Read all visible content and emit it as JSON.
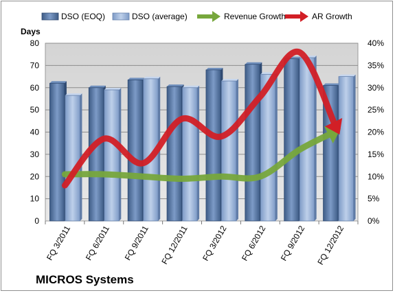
{
  "chart_data": {
    "type": "bar",
    "title": "MICROS Systems",
    "ylabel": "Days",
    "categories": [
      "FQ 3/2011",
      "FQ 6/2011",
      "FQ 9/2011",
      "FQ 12/2011",
      "FQ 3/2012",
      "FQ 6/2012",
      "FQ 9/2012",
      "FQ 12/2012"
    ],
    "ylim": [
      0,
      80
    ],
    "y_ticks": [
      "0",
      "10",
      "20",
      "30",
      "40",
      "50",
      "60",
      "70",
      "80"
    ],
    "y2lim": [
      0,
      40
    ],
    "y2_ticks": [
      "0%",
      "5%",
      "10%",
      "15%",
      "20%",
      "25%",
      "30%",
      "35%",
      "40%"
    ],
    "series": [
      {
        "name": "DSO (EOQ)",
        "axis": "left",
        "kind": "bar",
        "color": "#4f6f9c",
        "values": [
          62,
          60,
          63.5,
          60.5,
          68,
          70.5,
          73,
          61
        ]
      },
      {
        "name": "DSO (average)",
        "axis": "left",
        "kind": "bar",
        "color": "#92acd2",
        "values": [
          56.5,
          59,
          64,
          60,
          63,
          66,
          73.5,
          65
        ]
      },
      {
        "name": "Revenue Growth",
        "axis": "right",
        "kind": "arrow-line",
        "color": "#77a73c",
        "values": [
          10.5,
          10.5,
          10,
          9.5,
          10,
          10,
          16,
          20.5
        ]
      },
      {
        "name": "AR Growth",
        "axis": "right",
        "kind": "arrow-line",
        "color": "#d21f26",
        "values": [
          8,
          18.5,
          13,
          23,
          19,
          28,
          38,
          20
        ]
      }
    ],
    "legend_position": "top",
    "grid": true,
    "plot_background": "#dcdcdc"
  }
}
